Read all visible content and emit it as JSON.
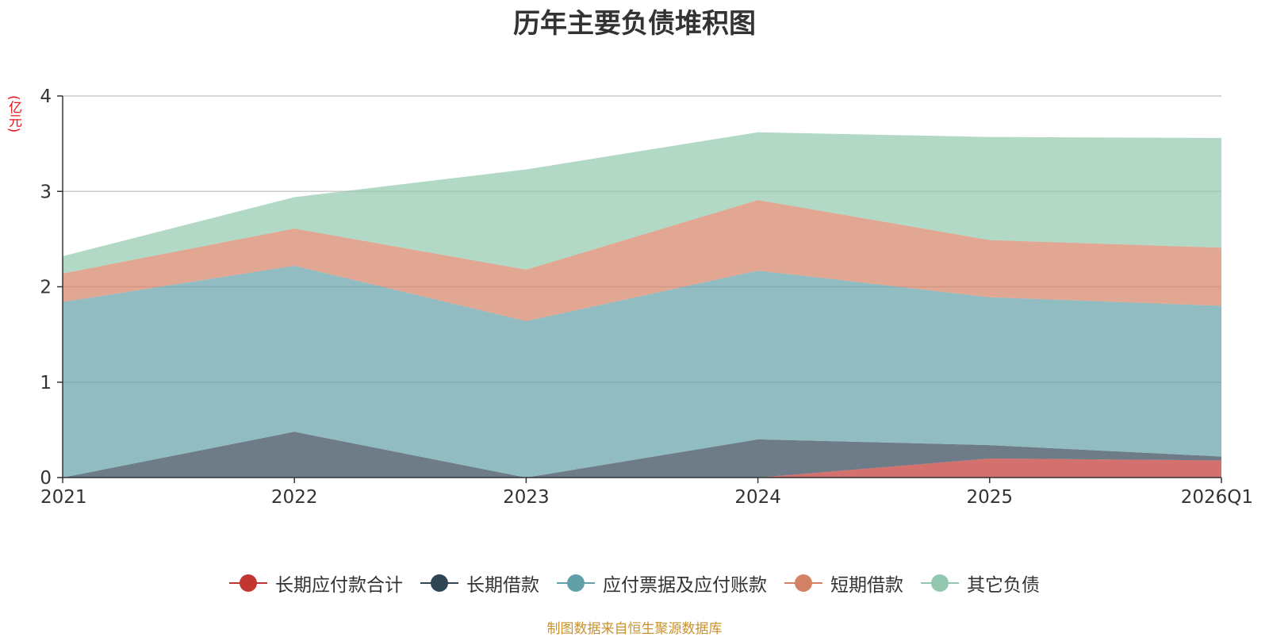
{
  "colors": {
    "series": [
      "#c23531",
      "#2f4554",
      "#61a0a8",
      "#d48265",
      "#91c7ae"
    ],
    "grid": "#cccccc",
    "axis": "#333333",
    "title": "#333333",
    "unit": "#e8141b",
    "source": "#c8922f"
  },
  "chart_data": {
    "type": "area",
    "stacked": true,
    "title": "历年主要负债堆积图",
    "ylabel": "(亿元)",
    "xlabel": "",
    "categories": [
      "2021",
      "2022",
      "2023",
      "2024",
      "2025",
      "2026Q1"
    ],
    "ylim": [
      0,
      4
    ],
    "yticks": [
      0,
      1,
      2,
      3,
      4
    ],
    "grid": true,
    "legend_position": "bottom",
    "series": [
      {
        "name": "长期应付款合计",
        "values": [
          0,
          0,
          0,
          0,
          0.2,
          0.18
        ]
      },
      {
        "name": "长期借款",
        "values": [
          0,
          0.48,
          0,
          0.4,
          0.14,
          0.04
        ]
      },
      {
        "name": "应付票据及应付账款",
        "values": [
          1.84,
          1.74,
          1.64,
          1.77,
          1.55,
          1.58
        ]
      },
      {
        "name": "短期借款",
        "values": [
          0.3,
          0.39,
          0.54,
          0.74,
          0.6,
          0.61
        ]
      },
      {
        "name": "其它负债",
        "values": [
          0.18,
          0.33,
          1.05,
          0.71,
          1.08,
          1.15
        ]
      }
    ],
    "source": "制图数据来自恒生聚源数据库"
  }
}
